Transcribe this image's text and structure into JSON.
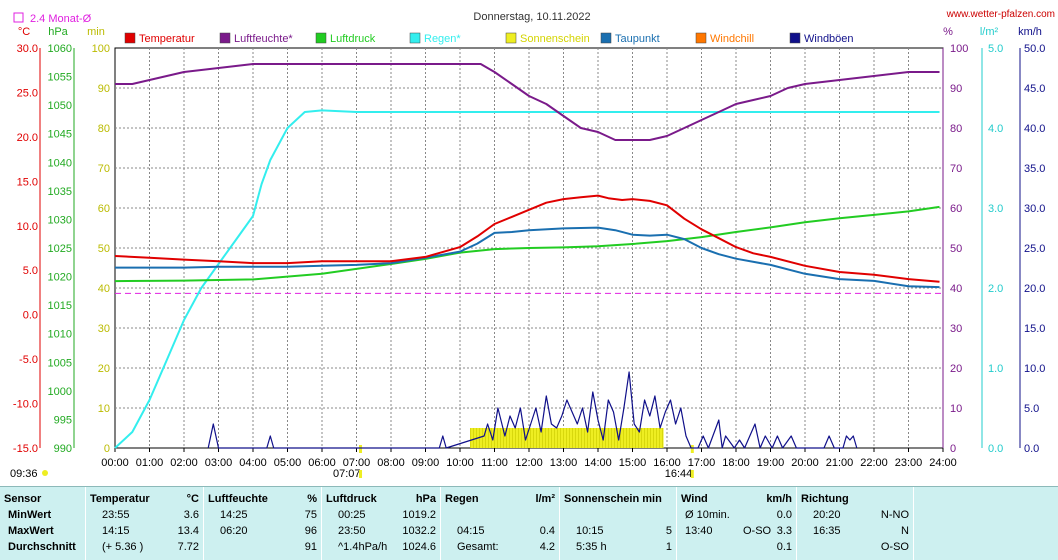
{
  "title": "Donnerstag, 10.11.2022",
  "website": "www.wetter-pfalzen.com",
  "time_start": "09:36",
  "time_markers": [
    "07:07",
    "16:44"
  ],
  "monat_label": "2.4 Monat-Ø",
  "legend": [
    {
      "name": "Temperatur",
      "color": "#e00000"
    },
    {
      "name": "Luftfeuchte*",
      "color": "#7a1a8a"
    },
    {
      "name": "Luftdruck",
      "color": "#22cc22"
    },
    {
      "name": "Regen*",
      "color": "#33eeee"
    },
    {
      "name": "Sonnenschein",
      "color": "#eeee22"
    },
    {
      "name": "Taupunkt",
      "color": "#1a6fb0"
    },
    {
      "name": "Windchill",
      "color": "#ff7700"
    },
    {
      "name": "Windböen",
      "color": "#10108a"
    }
  ],
  "axes": {
    "celsius": {
      "unit": "°C",
      "ticks": [
        "30.0",
        "25.0",
        "20.0",
        "15.0",
        "10.0",
        "5.0",
        "0.0",
        "-5.0",
        "-10.0",
        "-15.0"
      ],
      "color": "#e00000"
    },
    "hpa": {
      "unit": "hPa",
      "ticks": [
        "1060",
        "1055",
        "1050",
        "1045",
        "1040",
        "1035",
        "1030",
        "1025",
        "1020",
        "1015",
        "1010",
        "1005",
        "1000",
        "995",
        "990"
      ],
      "color": "#22aa22"
    },
    "min": {
      "unit": "min",
      "ticks": [
        "100",
        "90",
        "80",
        "70",
        "60",
        "50",
        "40",
        "30",
        "20",
        "10",
        "0"
      ],
      "color": "#bbbb00"
    },
    "percent": {
      "unit": "%",
      "ticks": [
        "100",
        "90",
        "80",
        "70",
        "60",
        "50",
        "40",
        "30",
        "20",
        "10",
        "0"
      ],
      "color": "#7a1a8a"
    },
    "lm2": {
      "unit": "l/m²",
      "ticks": [
        "5.0",
        "4.0",
        "3.0",
        "2.0",
        "1.0",
        "0.0"
      ],
      "color": "#22cccc"
    },
    "kmh": {
      "unit": "km/h",
      "ticks": [
        "50.0",
        "45.0",
        "40.0",
        "35.0",
        "30.0",
        "25.0",
        "20.0",
        "15.0",
        "10.0",
        "5.0",
        "0.0"
      ],
      "color": "#10108a"
    },
    "x_ticks": [
      "00:00",
      "01:00",
      "02:00",
      "03:00",
      "04:00",
      "05:00",
      "06:00",
      "07:00",
      "08:00",
      "09:00",
      "10:00",
      "11:00",
      "12:00",
      "13:00",
      "14:00",
      "15:00",
      "16:00",
      "17:00",
      "18:00",
      "19:00",
      "20:00",
      "21:00",
      "22:00",
      "23:00",
      "24:00"
    ]
  },
  "chart_data": {
    "type": "line",
    "title": "Donnerstag, 10.11.2022",
    "x_unit": "hours",
    "xlim": [
      0,
      24
    ],
    "monat_avg_celsius": 2.4,
    "series": [
      {
        "name": "Temperatur",
        "unit": "°C",
        "color": "#e00000",
        "x": [
          0,
          1,
          2,
          3,
          4,
          5,
          6,
          7,
          8,
          9,
          10,
          10.5,
          11,
          11.5,
          12,
          12.5,
          13,
          13.5,
          14,
          14.3,
          14.7,
          15,
          15.5,
          16,
          16.5,
          17,
          17.5,
          18,
          18.5,
          19,
          20,
          21,
          22,
          23,
          23.9
        ],
        "y": [
          6.6,
          6.4,
          6.2,
          6.0,
          5.8,
          5.8,
          6.0,
          6.0,
          6.0,
          6.5,
          7.6,
          8.8,
          10.2,
          11.0,
          11.8,
          12.6,
          13.0,
          13.2,
          13.4,
          13.1,
          12.9,
          13.0,
          12.8,
          12.3,
          10.8,
          9.6,
          8.6,
          7.6,
          6.9,
          6.5,
          5.5,
          4.8,
          4.5,
          4.0,
          3.7
        ]
      },
      {
        "name": "Luftfeuchte*",
        "unit": "%",
        "color": "#7a1a8a",
        "x": [
          0,
          0.5,
          1,
          2,
          3,
          4,
          5,
          6,
          7,
          8,
          9,
          10,
          10.6,
          11,
          11.5,
          12,
          12.5,
          13,
          13.5,
          14,
          14.5,
          15,
          15.5,
          16,
          16.5,
          17,
          17.5,
          18,
          18.5,
          19,
          19.5,
          20,
          21,
          22,
          23,
          23.9
        ],
        "y": [
          91,
          91,
          92,
          94,
          95,
          96,
          96,
          96,
          96,
          96,
          96,
          96,
          96,
          94,
          91,
          88,
          86,
          83,
          80,
          79,
          77,
          77,
          77,
          78,
          80,
          82,
          84,
          86,
          87,
          88,
          90,
          91,
          92,
          93,
          94,
          94
        ]
      },
      {
        "name": "Luftdruck",
        "unit": "hPa",
        "color": "#22cc22",
        "x": [
          0,
          2,
          4,
          6,
          8,
          9,
          10,
          11,
          12,
          13,
          14,
          15,
          16,
          17,
          18,
          19,
          20,
          21,
          22,
          23,
          23.9
        ],
        "y": [
          1019.2,
          1019.3,
          1019.5,
          1020.5,
          1022.2,
          1023.1,
          1024.2,
          1024.8,
          1025.0,
          1025.1,
          1025.3,
          1025.7,
          1026.2,
          1026.9,
          1027.8,
          1028.6,
          1029.5,
          1030.2,
          1030.8,
          1031.4,
          1032.2
        ]
      },
      {
        "name": "Regen*",
        "unit": "l/m²",
        "color": "#33eeee",
        "x": [
          0,
          0.5,
          1,
          1.5,
          2,
          2.5,
          3,
          3.5,
          4,
          4.25,
          4.5,
          5,
          5.5,
          6,
          7,
          10,
          14,
          18,
          22,
          23.9
        ],
        "y": [
          0,
          0.2,
          0.6,
          1.1,
          1.6,
          2.0,
          2.3,
          2.6,
          2.9,
          3.3,
          3.6,
          4.0,
          4.2,
          4.22,
          4.2,
          4.2,
          4.2,
          4.2,
          4.2,
          4.2
        ]
      },
      {
        "name": "Taupunkt",
        "unit": "°C",
        "color": "#1a6fb0",
        "x": [
          0,
          1,
          2,
          3,
          4,
          5,
          6,
          7,
          8,
          9,
          10,
          10.5,
          11,
          11.5,
          12,
          13,
          14,
          14.5,
          15,
          15.5,
          16,
          16.5,
          17,
          17.5,
          18,
          19,
          20,
          21,
          22,
          23,
          23.9
        ],
        "y": [
          5.3,
          5.3,
          5.3,
          5.4,
          5.4,
          5.4,
          5.5,
          5.6,
          5.8,
          6.4,
          7.1,
          8.0,
          9.2,
          9.3,
          9.5,
          9.7,
          9.8,
          9.5,
          9.0,
          8.9,
          9.0,
          8.5,
          7.5,
          6.8,
          6.3,
          5.6,
          4.6,
          4.0,
          3.8,
          3.2,
          3.1
        ]
      },
      {
        "name": "Windböen",
        "unit": "km/h",
        "color": "#10108a",
        "x": [
          2.7,
          2.85,
          3,
          3.15,
          4.4,
          4.5,
          4.6,
          9.4,
          9.5,
          9.6,
          10.7,
          10.8,
          10.95,
          11.1,
          11.3,
          11.45,
          11.6,
          11.75,
          11.9,
          12.05,
          12.2,
          12.35,
          12.5,
          12.65,
          12.8,
          12.95,
          13.1,
          13.25,
          13.4,
          13.55,
          13.7,
          13.85,
          14.0,
          14.15,
          14.3,
          14.45,
          14.6,
          14.75,
          14.9,
          15.05,
          15.2,
          15.35,
          15.5,
          15.65,
          15.8,
          15.95,
          16.1,
          16.25,
          16.4,
          16.55,
          16.7,
          16.9,
          17.05,
          17.2,
          17.5,
          17.6,
          17.7,
          17.95,
          18.1,
          18.25,
          18.55,
          18.7,
          18.85,
          19.05,
          19.2,
          19.35,
          19.6,
          19.75,
          19.9,
          20.55,
          20.7,
          20.85,
          21.1,
          21.2,
          21.3,
          21.4,
          21.5
        ],
        "y": [
          0,
          3,
          0,
          0,
          0,
          1.5,
          0,
          0,
          1.5,
          0,
          1.5,
          3,
          1,
          5,
          1.5,
          4,
          2.5,
          5,
          1,
          3,
          5,
          2,
          6.5,
          3,
          2.5,
          4,
          6,
          4.5,
          3,
          5,
          2,
          7,
          3.5,
          1,
          6,
          4.5,
          1,
          5,
          9.5,
          3,
          2,
          6,
          4,
          6.5,
          2.5,
          4.5,
          6,
          3,
          5,
          1.5,
          0,
          0,
          1.5,
          0,
          3.5,
          0,
          1.5,
          0,
          1,
          0,
          3,
          0,
          1.5,
          0,
          1.5,
          0,
          1.5,
          0,
          0,
          0,
          1.5,
          0,
          0,
          1.5,
          1,
          1.5,
          0
        ]
      },
      {
        "name": "Sonnenschein",
        "unit": "min",
        "color": "#eeee22",
        "x": [
          10.3,
          15.9
        ],
        "y": [
          5,
          5
        ]
      }
    ]
  },
  "table": {
    "columns": [
      {
        "header": "Sensor",
        "unit": "",
        "rows": [
          {
            "a": "MinWert",
            "b": "",
            "c": ""
          },
          {
            "a": "MaxWert",
            "b": "",
            "c": ""
          },
          {
            "a": "Durchschnitt",
            "b": "",
            "c": ""
          }
        ]
      },
      {
        "header": "Temperatur",
        "unit": "°C",
        "rows": [
          {
            "a": "23:55",
            "b": "",
            "c": "3.6"
          },
          {
            "a": "14:15",
            "b": "",
            "c": "13.4"
          },
          {
            "a": "(+ 5.36 )",
            "b": "",
            "c": "7.72"
          }
        ]
      },
      {
        "header": "Luftfeuchte",
        "unit": "%",
        "rows": [
          {
            "a": "14:25",
            "b": "",
            "c": "75"
          },
          {
            "a": "06:20",
            "b": "",
            "c": "96"
          },
          {
            "a": "",
            "b": "",
            "c": "91"
          }
        ]
      },
      {
        "header": "Luftdruck",
        "unit": "hPa",
        "rows": [
          {
            "a": "00:25",
            "b": "",
            "c": "1019.2"
          },
          {
            "a": "23:50",
            "b": "",
            "c": "1032.2"
          },
          {
            "a": "^1.4hPa/h",
            "b": "",
            "c": "1024.6"
          }
        ]
      },
      {
        "header": "Regen",
        "unit": "l/m²",
        "rows": [
          {
            "a": "",
            "b": "",
            "c": ""
          },
          {
            "a": "04:15",
            "b": "",
            "c": "0.4"
          },
          {
            "a": "Gesamt:",
            "b": "",
            "c": "4.2"
          }
        ]
      },
      {
        "header": "Sonnenschein min",
        "unit": "",
        "rows": [
          {
            "a": "",
            "b": "",
            "c": ""
          },
          {
            "a": "10:15",
            "b": "",
            "c": "5"
          },
          {
            "a": "5:35 h",
            "b": "",
            "c": "1"
          }
        ]
      },
      {
        "header": "Wind",
        "unit": "km/h",
        "rows": [
          {
            "a": "Ø 10",
            "b": "min.",
            "c": "0.0"
          },
          {
            "a": "13:40",
            "b": "O-SO",
            "c": "3.3"
          },
          {
            "a": "",
            "b": "",
            "c": "0.1"
          }
        ]
      },
      {
        "header": "Richtung",
        "unit": "",
        "rows": [
          {
            "a": "20:20",
            "b": "",
            "c": "N-NO"
          },
          {
            "a": "16:35",
            "b": "",
            "c": "N"
          },
          {
            "a": "",
            "b": "",
            "c": "O-SO"
          }
        ]
      }
    ]
  }
}
